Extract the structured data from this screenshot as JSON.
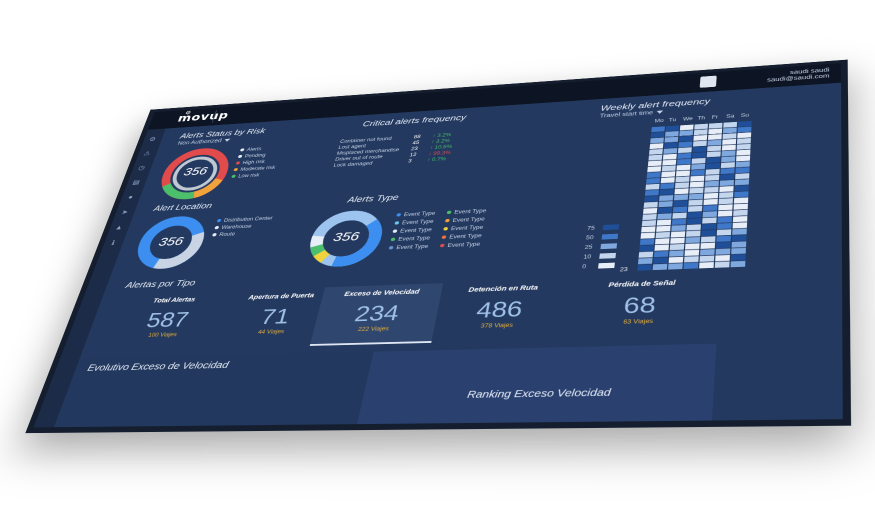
{
  "header": {
    "logo": "movup",
    "user_name": "saudi saudi",
    "user_email": "saudi@saudi.com"
  },
  "sidebar": {
    "icons": [
      "settings-icon",
      "alert-icon",
      "clock-icon",
      "route-icon",
      "pin-icon",
      "send-icon",
      "warning-icon",
      "info-icon"
    ]
  },
  "risk": {
    "title": "Alerts Status by Risk",
    "filter": "Non Authorized",
    "total": "356",
    "legend": [
      {
        "label": "Alerts",
        "color": "#e8eef8"
      },
      {
        "label": "Pending",
        "color": "#e8eef8"
      },
      {
        "label": "High risk",
        "color": "#e14b4b"
      },
      {
        "label": "Moderate risk",
        "color": "#f2a23a"
      },
      {
        "label": "Low risk",
        "color": "#4bbf6b"
      }
    ]
  },
  "critical": {
    "title": "Critical alerts frequency",
    "rows": [
      {
        "label": "Container not found",
        "value": "88",
        "change": "3.2%",
        "dir": "up",
        "color": "#4bbf6b"
      },
      {
        "label": "Lost agent",
        "value": "45",
        "change": "3.2%",
        "dir": "up",
        "color": "#4bbf6b"
      },
      {
        "label": "Misplaced merchandise",
        "value": "23",
        "change": "10.5%",
        "dir": "up",
        "color": "#4bbf6b"
      },
      {
        "label": "Driver out of route",
        "value": "12",
        "change": "99.3%",
        "dir": "down",
        "color": "#e14b4b"
      },
      {
        "label": "Lock damaged",
        "value": "3",
        "change": "0.7%",
        "dir": "up",
        "color": "#4bbf6b"
      }
    ]
  },
  "weekly": {
    "title": "Weekly alert frequency",
    "filter": "Travel start time",
    "days": [
      "Mo",
      "Tu",
      "We",
      "Th",
      "Fr",
      "Sa",
      "Su"
    ],
    "legend": [
      "75",
      "50",
      "25",
      "10",
      "0"
    ],
    "first_hour": "23"
  },
  "location": {
    "title": "Alert Location",
    "total": "356",
    "legend": [
      {
        "label": "Distribution Center",
        "color": "#3c8ff0"
      },
      {
        "label": "Warehouse",
        "color": "#e8eef8"
      },
      {
        "label": "Route",
        "color": "#e8eef8"
      }
    ]
  },
  "types": {
    "title": "Alerts Type",
    "total": "356",
    "legend": [
      {
        "label": "Event Type",
        "color": "#3c8ff0"
      },
      {
        "label": "Event Type",
        "color": "#4bbf6b"
      },
      {
        "label": "Event Type",
        "color": "#6ec6f0"
      },
      {
        "label": "Event Type",
        "color": "#f2a23a"
      },
      {
        "label": "Event Type",
        "color": "#e8eef8"
      },
      {
        "label": "Event Type",
        "color": "#f2d23a"
      },
      {
        "label": "Event Type",
        "color": "#4bbf6b"
      },
      {
        "label": "Event Type",
        "color": "#f2723a"
      },
      {
        "label": "Event Type",
        "color": "#6a8fd0"
      },
      {
        "label": "Event Type",
        "color": "#e14b4b"
      }
    ]
  },
  "kpis": {
    "section_title": "Alertas por Tipo",
    "items": [
      {
        "label": "Total Alertas",
        "value": "587",
        "sub": "100 Viajes"
      },
      {
        "label": "Apertura de Puerta",
        "value": "71",
        "sub": "44 Viajes"
      },
      {
        "label": "Exceso de Velocidad",
        "value": "234",
        "sub": "222 Viajes"
      },
      {
        "label": "Detención en Ruta",
        "value": "486",
        "sub": "378 Viajes"
      },
      {
        "label": "Pérdida de Señal",
        "value": "68",
        "sub": "63 Viajes"
      }
    ]
  },
  "panels": {
    "evolution": "Evolutivo Exceso de Velocidad",
    "ranking": "Ranking Exceso Velocidad"
  }
}
